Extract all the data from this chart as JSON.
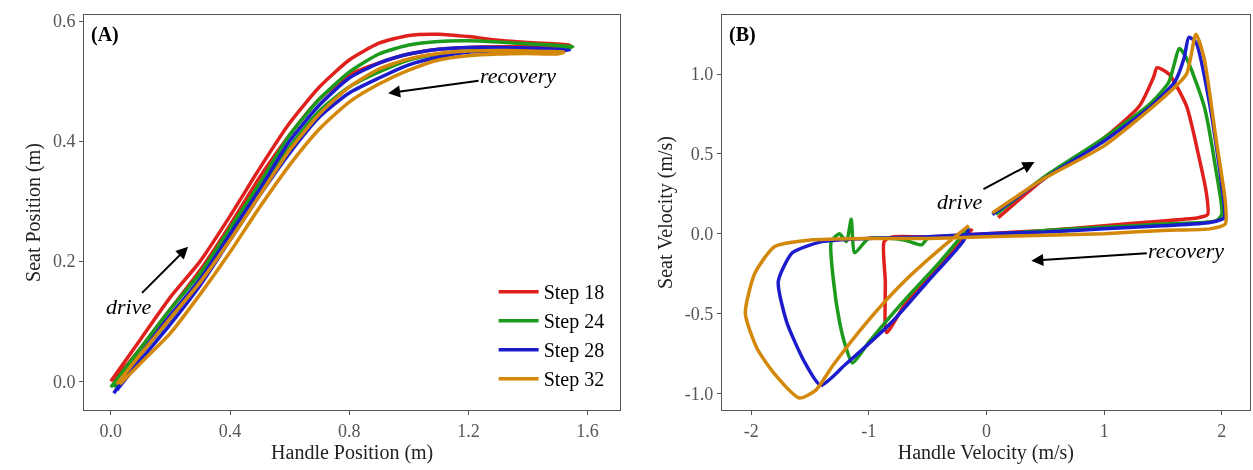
{
  "chart_data": [
    {
      "type": "line",
      "xlabel": "Handle Position (m)",
      "ylabel": "Seat Position (m)",
      "xlim": [
        -0.09,
        1.71
      ],
      "ylim": [
        -0.048,
        0.61
      ],
      "xticks": [
        {
          "value": 0,
          "label": "0.0"
        },
        0.4,
        0.8,
        1.2,
        1.6
      ],
      "yticks": [
        {
          "value": 0,
          "label": "0.0"
        },
        0.2,
        0.4,
        0.6
      ],
      "grid": false,
      "legend": "bottom right",
      "annotations": [
        "(A)",
        "drive",
        "recovery"
      ],
      "series": [
        {
          "name": "Step 18",
          "color": "#e0201c",
          "x": [
            0,
            0.1,
            0.2,
            0.3,
            0.4,
            0.5,
            0.6,
            0.7,
            0.8,
            0.9,
            1.0,
            1.1,
            1.2,
            1.3,
            1.4,
            1.54,
            1.5,
            1.4,
            1.3,
            1.2,
            1.1,
            1.0,
            0.9,
            0.8,
            0.7,
            0.6,
            0.5,
            0.4,
            0.3,
            0.2,
            0.1,
            0.01
          ],
          "values": [
            0.0,
            0.07,
            0.14,
            0.2,
            0.275,
            0.355,
            0.43,
            0.49,
            0.535,
            0.563,
            0.576,
            0.578,
            0.574,
            0.568,
            0.564,
            0.56,
            0.556,
            0.557,
            0.557,
            0.556,
            0.553,
            0.545,
            0.53,
            0.51,
            0.47,
            0.41,
            0.34,
            0.26,
            0.185,
            0.12,
            0.055,
            0.0
          ]
        },
        {
          "name": "Step 24",
          "color": "#1c9a1c",
          "x": [
            0,
            0.1,
            0.2,
            0.3,
            0.4,
            0.5,
            0.6,
            0.7,
            0.8,
            0.9,
            1.0,
            1.1,
            1.2,
            1.3,
            1.4,
            1.55,
            1.5,
            1.4,
            1.3,
            1.2,
            1.1,
            1.0,
            0.9,
            0.8,
            0.7,
            0.6,
            0.5,
            0.4,
            0.3,
            0.2,
            0.1,
            0.01
          ],
          "values": [
            -0.01,
            0.055,
            0.12,
            0.18,
            0.255,
            0.33,
            0.41,
            0.47,
            0.515,
            0.545,
            0.56,
            0.566,
            0.567,
            0.565,
            0.562,
            0.557,
            0.553,
            0.553,
            0.552,
            0.55,
            0.545,
            0.535,
            0.515,
            0.49,
            0.45,
            0.39,
            0.32,
            0.245,
            0.17,
            0.105,
            0.045,
            -0.01
          ]
        },
        {
          "name": "Step 28",
          "color": "#1c1ccc",
          "x": [
            0.01,
            0.1,
            0.2,
            0.3,
            0.4,
            0.5,
            0.6,
            0.7,
            0.8,
            0.9,
            1.0,
            1.1,
            1.2,
            1.3,
            1.4,
            1.54,
            1.5,
            1.4,
            1.3,
            1.2,
            1.1,
            1.0,
            0.9,
            0.8,
            0.7,
            0.6,
            0.5,
            0.4,
            0.3,
            0.2,
            0.1,
            0.02
          ],
          "values": [
            -0.02,
            0.045,
            0.11,
            0.17,
            0.245,
            0.32,
            0.4,
            0.46,
            0.505,
            0.53,
            0.545,
            0.553,
            0.556,
            0.556,
            0.555,
            0.552,
            0.55,
            0.551,
            0.55,
            0.548,
            0.54,
            0.527,
            0.505,
            0.48,
            0.44,
            0.38,
            0.31,
            0.235,
            0.16,
            0.095,
            0.035,
            -0.015
          ]
        },
        {
          "name": "Step 32",
          "color": "#d4880a",
          "x": [
            0.02,
            0.1,
            0.2,
            0.3,
            0.4,
            0.5,
            0.6,
            0.7,
            0.8,
            0.9,
            1.0,
            1.1,
            1.2,
            1.3,
            1.4,
            1.52,
            1.5,
            1.4,
            1.3,
            1.2,
            1.1,
            1.0,
            0.9,
            0.8,
            0.7,
            0.6,
            0.5,
            0.4,
            0.3,
            0.2,
            0.1,
            0.03
          ],
          "values": [
            -0.005,
            0.045,
            0.105,
            0.165,
            0.235,
            0.31,
            0.385,
            0.445,
            0.49,
            0.52,
            0.537,
            0.546,
            0.55,
            0.551,
            0.55,
            0.548,
            0.545,
            0.546,
            0.545,
            0.542,
            0.535,
            0.518,
            0.495,
            0.465,
            0.42,
            0.36,
            0.29,
            0.215,
            0.145,
            0.08,
            0.03,
            -0.005
          ]
        }
      ]
    },
    {
      "type": "line",
      "xlabel": "Handle Velocity (m/s)",
      "ylabel": "Seat Velocity (m/s)",
      "xlim": [
        -2.25,
        2.24
      ],
      "ylim": [
        -1.105,
        1.37
      ],
      "xticks": [
        -2,
        -1,
        0,
        1,
        2
      ],
      "yticks": [
        {
          "value": -1,
          "label": "-1.0"
        },
        -0.5,
        {
          "value": 0,
          "label": "0.0"
        },
        0.5,
        {
          "value": 1,
          "label": "1.0"
        }
      ],
      "grid": false,
      "legend": false,
      "annotations": [
        "(B)",
        "drive",
        "recovery"
      ],
      "series": [
        {
          "color": "#e0201c",
          "x": [
            0.1,
            0.5,
            1.0,
            1.3,
            1.42,
            1.45,
            1.55,
            1.7,
            1.8,
            1.87,
            1.88,
            1.8,
            1.5,
            1.0,
            0.5,
            0.0,
            -0.5,
            -0.8,
            -0.87,
            -0.86,
            -0.85,
            -0.7,
            -0.5,
            -0.3,
            -0.12
          ],
          "values": [
            0.1,
            0.35,
            0.6,
            0.8,
            0.98,
            1.04,
            1.0,
            0.8,
            0.5,
            0.25,
            0.12,
            0.1,
            0.08,
            0.05,
            0.02,
            0.0,
            -0.02,
            -0.02,
            -0.05,
            -0.3,
            -0.62,
            -0.45,
            -0.28,
            -0.12,
            0.03
          ]
        },
        {
          "color": "#1c9a1c",
          "x": [
            0.08,
            0.5,
            1.0,
            1.4,
            1.55,
            1.64,
            1.7,
            1.85,
            1.95,
            2.0,
            1.95,
            1.5,
            1.0,
            0.5,
            0.0,
            -0.5,
            -0.55,
            -0.7,
            -1.0,
            -1.12,
            -1.15,
            -1.19,
            -1.25,
            -1.32,
            -1.3,
            -1.25,
            -1.2,
            -1.14,
            -1.0,
            -0.7,
            -0.4,
            -0.15
          ],
          "values": [
            0.12,
            0.36,
            0.6,
            0.82,
            0.95,
            1.16,
            1.1,
            0.8,
            0.4,
            0.12,
            0.08,
            0.06,
            0.04,
            0.02,
            -0.01,
            -0.03,
            -0.07,
            -0.04,
            -0.03,
            -0.12,
            0.09,
            -0.05,
            0.0,
            -0.05,
            -0.3,
            -0.55,
            -0.7,
            -0.81,
            -0.68,
            -0.42,
            -0.18,
            0.04
          ]
        },
        {
          "color": "#1c1ccc",
          "x": [
            0.05,
            0.5,
            1.0,
            1.4,
            1.6,
            1.68,
            1.72,
            1.78,
            1.9,
            2.0,
            2.02,
            1.9,
            1.5,
            1.0,
            0.5,
            0.0,
            -0.5,
            -1.0,
            -1.4,
            -1.65,
            -1.77,
            -1.7,
            -1.55,
            -1.41,
            -1.2,
            -0.8,
            -0.5,
            -0.2,
            -0.15
          ],
          "values": [
            0.12,
            0.35,
            0.58,
            0.8,
            0.95,
            1.1,
            1.23,
            1.2,
            0.8,
            0.3,
            0.1,
            0.07,
            0.05,
            0.03,
            0.01,
            0.0,
            -0.02,
            -0.03,
            -0.05,
            -0.12,
            -0.3,
            -0.55,
            -0.8,
            -0.95,
            -0.82,
            -0.55,
            -0.3,
            -0.05,
            0.03
          ]
        },
        {
          "color": "#d4880a",
          "x": [
            0.05,
            0.5,
            1.0,
            1.5,
            1.7,
            1.78,
            1.85,
            1.95,
            2.03,
            2.03,
            1.9,
            1.5,
            1.0,
            0.5,
            0.0,
            -0.5,
            -1.0,
            -1.5,
            -1.8,
            -1.97,
            -2.05,
            -1.95,
            -1.8,
            -1.59,
            -1.45,
            -1.3,
            -1.0,
            -0.7,
            -0.4,
            -0.15
          ],
          "values": [
            0.13,
            0.35,
            0.55,
            0.85,
            1.0,
            1.25,
            1.1,
            0.6,
            0.2,
            0.06,
            0.03,
            0.02,
            0.0,
            -0.01,
            -0.02,
            -0.03,
            -0.03,
            -0.04,
            -0.08,
            -0.25,
            -0.5,
            -0.72,
            -0.88,
            -1.03,
            -0.98,
            -0.82,
            -0.54,
            -0.3,
            -0.1,
            0.05
          ]
        }
      ]
    }
  ]
}
